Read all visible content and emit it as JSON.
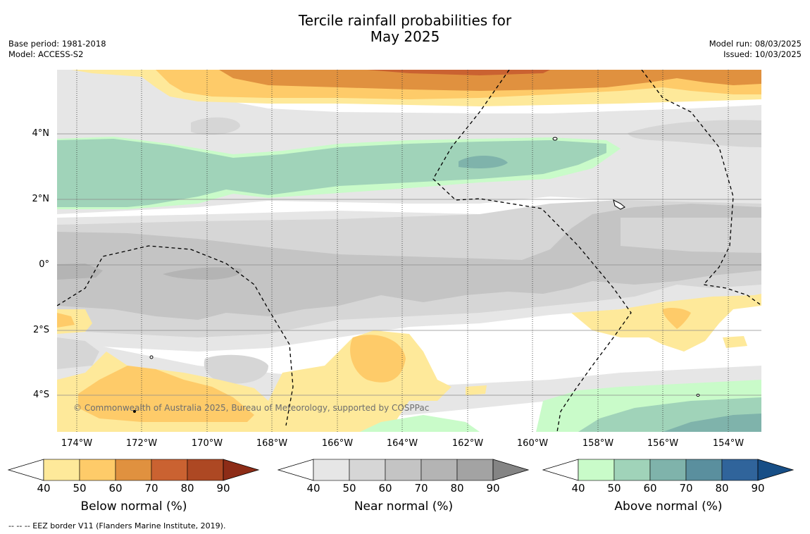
{
  "title_line1": "Tercile rainfall probabilities for",
  "title_line2": "May 2025",
  "base_period": "Base period: 1981-2018",
  "model": "Model: ACCESS-S2",
  "model_run": "Model run: 08/03/2025",
  "issued": "Issued: 10/03/2025",
  "copyright": "© Commonwealth of Australia 2025, Bureau of Meteorology, supported by COSPPac",
  "footnote": "--  --  -- EEZ border V11 (Flanders Marine Institute, 2019).",
  "lat_labels": [
    "4°N",
    "2°N",
    "0°",
    "2°S",
    "4°S"
  ],
  "lon_labels": [
    "174°W",
    "172°W",
    "170°W",
    "168°W",
    "166°W",
    "164°W",
    "162°W",
    "160°W",
    "158°W",
    "156°W",
    "154°W"
  ],
  "colorbars": [
    {
      "title": "Below normal (%)",
      "ticks": [
        "40",
        "50",
        "60",
        "70",
        "80",
        "90"
      ],
      "colors": [
        "#ffffff",
        "#fee99a",
        "#fecb69",
        "#e0913f",
        "#ca6231",
        "#ad4823",
        "#8d2c17"
      ]
    },
    {
      "title": "Near normal (%)",
      "ticks": [
        "40",
        "50",
        "60",
        "70",
        "80",
        "90"
      ],
      "colors": [
        "#ffffff",
        "#e6e6e6",
        "#d6d6d6",
        "#c4c4c4",
        "#b4b4b4",
        "#a3a3a3",
        "#848484"
      ]
    },
    {
      "title": "Above normal (%)",
      "ticks": [
        "40",
        "50",
        "60",
        "70",
        "80",
        "90"
      ],
      "colors": [
        "#ffffff",
        "#c9fbc9",
        "#a0d3b9",
        "#7fb3ab",
        "#5a8f9e",
        "#30649b",
        "#174e86"
      ]
    }
  ],
  "colors": {
    "white_gap": "#ffffff",
    "gridline": "#8c8c8c",
    "eez_border": "#000000"
  }
}
